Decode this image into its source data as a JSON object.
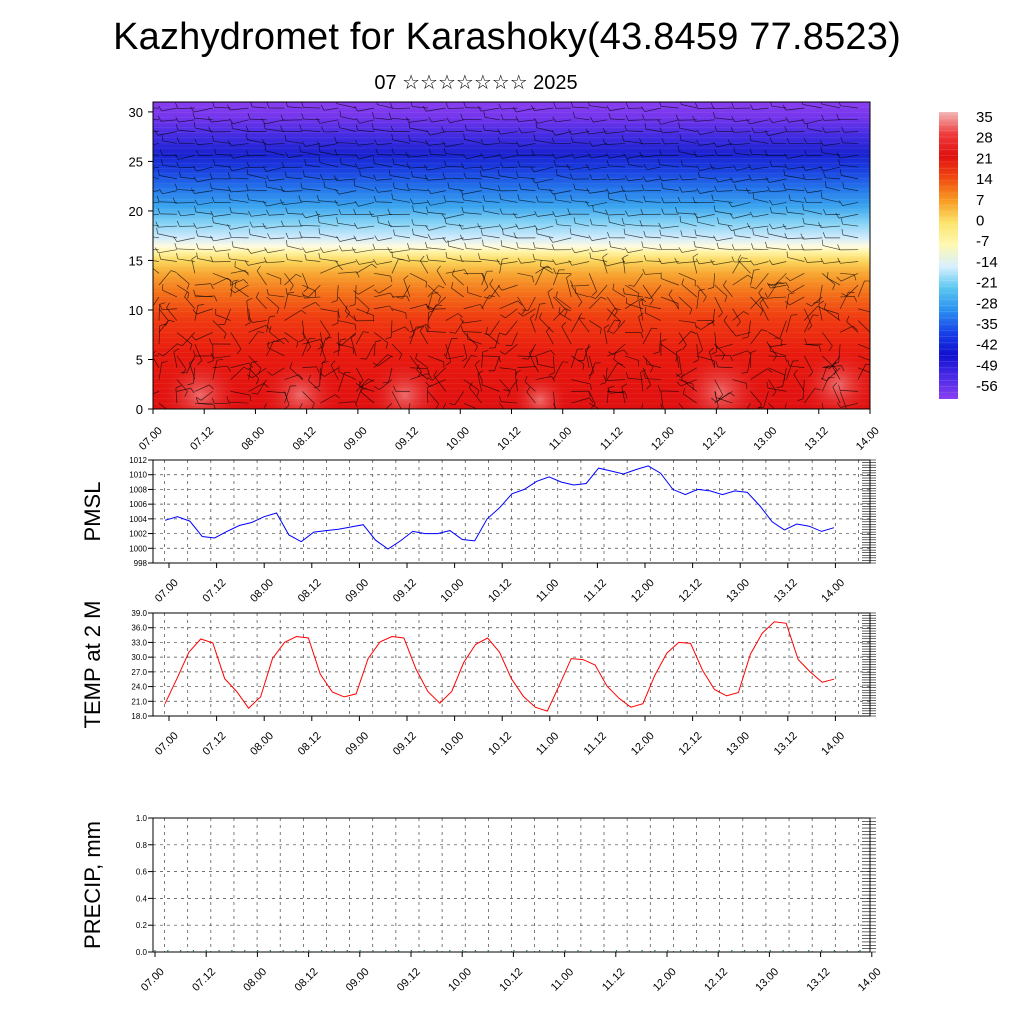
{
  "title": "Kazhydromet for Karashoky(43.8459 77.8523)",
  "subtitle": "07 ☆☆☆☆☆☆☆ 2025",
  "colorbar": {
    "labels": [
      "35",
      "28",
      "21",
      "14",
      "7",
      "0",
      "-7",
      "-14",
      "-21",
      "-28",
      "-35",
      "-42",
      "-49",
      "-56"
    ],
    "colors": [
      "#f2b8b8",
      "#ef3b3b",
      "#e01010",
      "#f04a10",
      "#f79a20",
      "#fce36a",
      "#fff8b0",
      "#d8f0ff",
      "#58c6f0",
      "#2a8ff0",
      "#1740e8",
      "#1010d0",
      "#4a2ae6",
      "#8a3ff0"
    ]
  },
  "chart_data": [
    {
      "type": "heatmap",
      "name": "cross-section",
      "x_tick_labels": [
        "07.00",
        "07.12",
        "08.00",
        "08.12",
        "09.00",
        "09.12",
        "10.00",
        "10.12",
        "11.00",
        "11.12",
        "12.00",
        "12.12",
        "13.00",
        "13.12",
        "14.00"
      ],
      "y_ticks": [
        0,
        5,
        10,
        15,
        20,
        25,
        30
      ],
      "ylim": [
        0,
        31
      ],
      "colorbar_range": [
        -56,
        35
      ],
      "overlay": "wind barbs"
    },
    {
      "type": "line",
      "ylabel": "PMSL",
      "ylim": [
        998,
        1012
      ],
      "y_ticks": [
        998,
        1000,
        1002,
        1004,
        1006,
        1008,
        1010,
        1012
      ],
      "x_tick_labels": [
        "07.00",
        "07.12",
        "08.00",
        "08.12",
        "09.00",
        "09.12",
        "10.00",
        "10.12",
        "11.00",
        "11.12",
        "12.00",
        "12.12",
        "13.00",
        "13.12",
        "14.00"
      ],
      "color": "#0000ff",
      "values": [
        1003.8,
        1004.3,
        1003.7,
        1001.6,
        1001.4,
        1002.3,
        1003.1,
        1003.5,
        1004.3,
        1004.8,
        1001.8,
        1000.9,
        1002.2,
        1002.4,
        1002.6,
        1002.9,
        1003.2,
        1001.1,
        999.9,
        1001.0,
        1002.3,
        1002.0,
        1002.0,
        1002.4,
        1001.2,
        1001.0,
        1004.0,
        1005.5,
        1007.4,
        1008.0,
        1009.1,
        1009.7,
        1009.0,
        1008.6,
        1008.8,
        1010.9,
        1010.5,
        1010.1,
        1010.7,
        1011.2,
        1010.2,
        1008.0,
        1007.3,
        1008.0,
        1007.8,
        1007.3,
        1007.8,
        1007.6,
        1005.8,
        1003.6,
        1002.5,
        1003.3,
        1003.0,
        1002.3,
        1002.8
      ]
    },
    {
      "type": "line",
      "ylabel": "TEMP at 2 M",
      "ylim": [
        18.0,
        39.0
      ],
      "y_ticks": [
        "18.0",
        "21.0",
        "24.0",
        "27.0",
        "30.0",
        "33.0",
        "36.0",
        "39.0"
      ],
      "x_tick_labels": [
        "07.00",
        "07.12",
        "08.00",
        "08.12",
        "09.00",
        "09.12",
        "10.00",
        "10.12",
        "11.00",
        "11.12",
        "12.00",
        "12.12",
        "13.00",
        "13.12",
        "14.00"
      ],
      "color": "#ff0000",
      "values": [
        20.5,
        25.6,
        31.0,
        33.7,
        32.9,
        25.6,
        23.0,
        19.6,
        21.9,
        29.7,
        33.0,
        34.2,
        33.9,
        26.5,
        22.9,
        21.9,
        22.5,
        29.7,
        33.1,
        34.2,
        33.9,
        27.6,
        23.0,
        20.6,
        23.0,
        28.9,
        32.6,
        33.9,
        31.0,
        25.6,
        22.0,
        19.8,
        19.0,
        24.2,
        29.7,
        29.5,
        28.4,
        24.1,
        21.6,
        19.8,
        20.5,
        26.3,
        30.8,
        33.0,
        32.8,
        27.3,
        23.4,
        22.1,
        22.8,
        30.6,
        34.9,
        37.2,
        36.9,
        29.5,
        27.0,
        24.9,
        25.5
      ]
    },
    {
      "type": "bar",
      "ylabel": "PRECIP, mm",
      "ylim": [
        0.0,
        1.0
      ],
      "y_ticks": [
        "0.0",
        "0.2",
        "0.4",
        "0.6",
        "0.8",
        "1.0"
      ],
      "x_tick_labels": [
        "07.00",
        "07.12",
        "08.00",
        "08.12",
        "09.00",
        "09.12",
        "10.00",
        "10.12",
        "11.00",
        "11.12",
        "12.00",
        "12.12",
        "13.00",
        "13.12",
        "14.00"
      ],
      "color": "#2e6b4a",
      "values": [
        0,
        0,
        0,
        0,
        0,
        0,
        0,
        0,
        0,
        0,
        0,
        0,
        0,
        0,
        0,
        0,
        0,
        0,
        0,
        0,
        0,
        0,
        0,
        0,
        0,
        0,
        0,
        0,
        0,
        0,
        0,
        0,
        0,
        0,
        0,
        0,
        0,
        0,
        0,
        0,
        0,
        0,
        0,
        0,
        0,
        0,
        0,
        0,
        0,
        0,
        0,
        0,
        0,
        0,
        0,
        0
      ]
    }
  ]
}
